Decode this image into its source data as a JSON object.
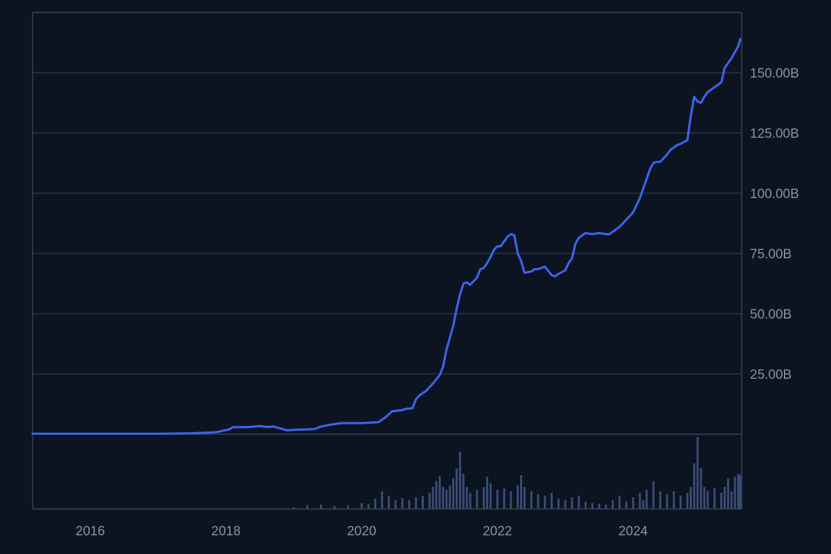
{
  "colors": {
    "background": "#0c1421",
    "grid": "#2a3444",
    "axis": "#3a4456",
    "line": "#3d63ea",
    "volume": "#4a5f94",
    "tick_text": "#8b93a3"
  },
  "chart_data": [
    {
      "type": "line",
      "title": "",
      "xlabel": "",
      "ylabel": "",
      "y_axis_side": "right",
      "grid": "horizontal",
      "xlim": [
        2015.15,
        2025.6
      ],
      "ylim": [
        0,
        175
      ],
      "y_ticks": [
        25,
        50,
        75,
        100,
        125,
        150
      ],
      "y_tick_labels": [
        "25.00B",
        "50.00B",
        "75.00B",
        "100.00B",
        "125.00B",
        "150.00B"
      ],
      "x_ticks": [
        2016,
        2018,
        2020,
        2022,
        2024
      ],
      "x_tick_labels": [
        "2016",
        "2018",
        "2020",
        "2022",
        "2024"
      ],
      "x": [
        2015.15,
        2016.0,
        2017.0,
        2017.5,
        2017.85,
        2018.05,
        2018.1,
        2018.35,
        2018.5,
        2018.6,
        2018.7,
        2018.85,
        2018.9,
        2019.0,
        2019.2,
        2019.3,
        2019.4,
        2019.55,
        2019.7,
        2019.9,
        2020.0,
        2020.25,
        2020.35,
        2020.45,
        2020.6,
        2020.65,
        2020.75,
        2020.8,
        2020.85,
        2020.95,
        2021.0,
        2021.05,
        2021.15,
        2021.2,
        2021.25,
        2021.3,
        2021.35,
        2021.4,
        2021.45,
        2021.5,
        2021.55,
        2021.6,
        2021.7,
        2021.75,
        2021.8,
        2021.85,
        2021.9,
        2021.95,
        2022.0,
        2022.05,
        2022.1,
        2022.15,
        2022.2,
        2022.25,
        2022.3,
        2022.35,
        2022.4,
        2022.5,
        2022.55,
        2022.6,
        2022.7,
        2022.8,
        2022.85,
        2022.9,
        2023.0,
        2023.05,
        2023.1,
        2023.15,
        2023.2,
        2023.25,
        2023.3,
        2023.4,
        2023.5,
        2023.6,
        2023.65,
        2023.7,
        2023.8,
        2023.9,
        2024.0,
        2024.05,
        2024.1,
        2024.15,
        2024.2,
        2024.25,
        2024.3,
        2024.35,
        2024.4,
        2024.45,
        2024.5,
        2024.55,
        2024.6,
        2024.65,
        2024.7,
        2024.8,
        2024.85,
        2024.9,
        2024.95,
        2025.0,
        2025.05,
        2025.1,
        2025.15,
        2025.2,
        2025.3,
        2025.35,
        2025.4,
        2025.45,
        2025.5,
        2025.55,
        2025.58
      ],
      "y": [
        0.2,
        0.2,
        0.2,
        0.4,
        0.8,
        2.0,
        2.9,
        3.0,
        3.4,
        3.0,
        3.2,
        2.0,
        1.6,
        1.8,
        2.0,
        2.1,
        3.2,
        4.0,
        4.6,
        4.6,
        4.6,
        5.0,
        7.0,
        9.5,
        10.0,
        10.5,
        10.8,
        14.5,
        16.0,
        18.0,
        19.5,
        21.0,
        24.5,
        28.0,
        35.0,
        40.0,
        45.0,
        52.0,
        58.0,
        62.5,
        63.0,
        62.0,
        65.0,
        68.5,
        69.0,
        71.0,
        73.5,
        76.5,
        78.0,
        78.0,
        80.0,
        82.0,
        83.0,
        82.5,
        75.0,
        72.0,
        67.0,
        67.5,
        68.5,
        68.5,
        69.5,
        66.0,
        65.5,
        66.5,
        68.0,
        71.0,
        73.0,
        79.0,
        81.5,
        82.5,
        83.5,
        83.0,
        83.5,
        83.0,
        83.0,
        84.0,
        86.0,
        89.0,
        92.0,
        95.0,
        98.0,
        102.0,
        106.0,
        110.0,
        112.5,
        113.0,
        113.0,
        114.5,
        116.0,
        118.0,
        119.0,
        120.0,
        120.5,
        122.0,
        132.0,
        140.0,
        138.0,
        137.5,
        140.0,
        142.0,
        143.0,
        144.0,
        146.0,
        152.0,
        154.0,
        156.0,
        158.5,
        161.0,
        164.0
      ]
    },
    {
      "type": "bar",
      "series_role": "volume",
      "xlabel": "",
      "ylabel": "",
      "xlim": [
        2015.15,
        2025.6
      ],
      "x": [
        2019.0,
        2019.2,
        2019.4,
        2019.6,
        2019.8,
        2020.0,
        2020.1,
        2020.2,
        2020.3,
        2020.4,
        2020.5,
        2020.6,
        2020.7,
        2020.8,
        2020.9,
        2021.0,
        2021.05,
        2021.1,
        2021.15,
        2021.2,
        2021.25,
        2021.3,
        2021.35,
        2021.4,
        2021.45,
        2021.5,
        2021.55,
        2021.6,
        2021.7,
        2021.8,
        2021.85,
        2021.9,
        2022.0,
        2022.1,
        2022.2,
        2022.3,
        2022.35,
        2022.4,
        2022.5,
        2022.6,
        2022.7,
        2022.8,
        2022.9,
        2023.0,
        2023.1,
        2023.2,
        2023.3,
        2023.4,
        2023.5,
        2023.6,
        2023.7,
        2023.8,
        2023.9,
        2024.0,
        2024.1,
        2024.15,
        2024.2,
        2024.3,
        2024.4,
        2024.5,
        2024.6,
        2024.7,
        2024.8,
        2024.85,
        2024.9,
        2024.95,
        2025.0,
        2025.05,
        2025.1,
        2025.2,
        2025.3,
        2025.35,
        2025.4,
        2025.45,
        2025.5,
        2025.55,
        2025.58
      ],
      "values": [
        2,
        5,
        6,
        4,
        5,
        8,
        7,
        14,
        24,
        18,
        12,
        15,
        12,
        16,
        18,
        22,
        30,
        38,
        45,
        30,
        26,
        32,
        42,
        55,
        78,
        48,
        30,
        22,
        26,
        30,
        44,
        35,
        26,
        28,
        24,
        32,
        46,
        30,
        24,
        20,
        18,
        22,
        14,
        12,
        16,
        18,
        10,
        8,
        7,
        6,
        12,
        18,
        10,
        16,
        22,
        12,
        26,
        38,
        24,
        20,
        24,
        18,
        22,
        30,
        62,
        98,
        56,
        30,
        25,
        28,
        22,
        30,
        42,
        24,
        44,
        48,
        46
      ]
    }
  ]
}
